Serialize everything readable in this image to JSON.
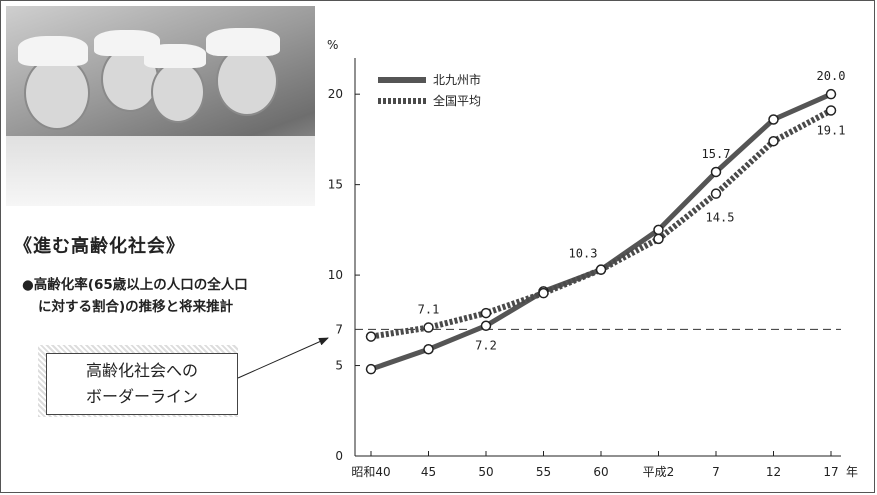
{
  "heading": "《進む高齢化社会》",
  "subtitle_line1": "●高齢化率(65歳以上の人口の全人口",
  "subtitle_line2": "に対する割合)の推移と将来推計",
  "callout_line1": "高齢化社会への",
  "callout_line2": "ボーダーライン",
  "chart_data": {
    "type": "line",
    "categories": [
      "昭和40",
      "45",
      "50",
      "55",
      "60",
      "平成2",
      "7",
      "12",
      "17"
    ],
    "x_unit": "年",
    "y_unit": "%",
    "ylim": [
      0,
      22
    ],
    "yticks": [
      0,
      5,
      10,
      15,
      20
    ],
    "ytick_labels": [
      "0",
      "5",
      "10",
      "15",
      "20"
    ],
    "extra_ytick": {
      "value": 7,
      "label": "7"
    },
    "reference_line": {
      "value": 7,
      "style": "dashed"
    },
    "grid": false,
    "legend_position": "top-left",
    "series": [
      {
        "name": "北九州市",
        "values": [
          4.8,
          5.9,
          7.2,
          9.1,
          10.3,
          12.5,
          15.7,
          18.6,
          20.0
        ],
        "style": "solid",
        "color": "#555555"
      },
      {
        "name": "全国平均",
        "values": [
          6.6,
          7.1,
          7.9,
          9.0,
          10.3,
          12.0,
          14.5,
          17.4,
          19.1
        ],
        "style": "dotted",
        "color": "#4a4a4a"
      }
    ],
    "annotations": [
      {
        "text": "7.1",
        "series": 1,
        "index": 1,
        "pos": "above"
      },
      {
        "text": "7.2",
        "series": 0,
        "index": 2,
        "pos": "below"
      },
      {
        "text": "10.3",
        "series": 0,
        "index": 4,
        "pos": "above-left"
      },
      {
        "text": "15.7",
        "series": 0,
        "index": 6,
        "pos": "above"
      },
      {
        "text": "14.5",
        "series": 1,
        "index": 6,
        "pos": "below-right"
      },
      {
        "text": "20.0",
        "series": 0,
        "index": 8,
        "pos": "above"
      },
      {
        "text": "19.1",
        "series": 1,
        "index": 8,
        "pos": "below"
      }
    ]
  }
}
